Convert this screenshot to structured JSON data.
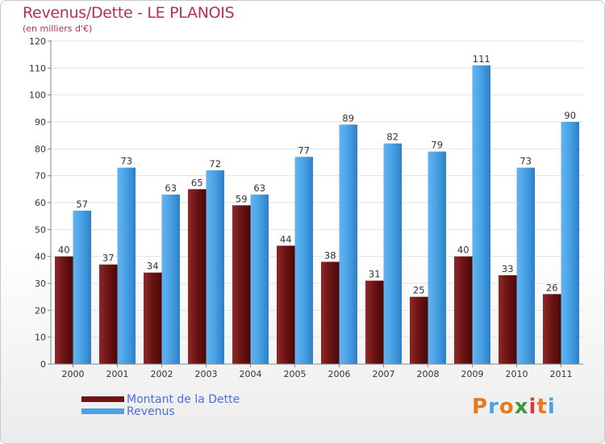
{
  "title": "Revenus/Dette - LE PLANOIS",
  "subtitle": "(en milliers d'€)",
  "legend": {
    "dette_label": "Montant de la Dette",
    "revenus_label": "Revenus"
  },
  "logo": {
    "text": "Proxiti"
  },
  "colors": {
    "dette": "#7a1a1a",
    "revenus": "#4aa3e6",
    "title": "#b03060"
  },
  "chart_data": {
    "type": "bar",
    "title": "Revenus/Dette - LE PLANOIS",
    "ylabel": "(en milliers d'€)",
    "xlabel": "",
    "ylim": [
      0,
      120
    ],
    "yticks": [
      0,
      10,
      20,
      30,
      40,
      50,
      60,
      70,
      80,
      90,
      100,
      110,
      120
    ],
    "grid": true,
    "legend_position": "bottom-left",
    "categories": [
      "2000",
      "2001",
      "2002",
      "2003",
      "2004",
      "2005",
      "2006",
      "2007",
      "2008",
      "2009",
      "2010",
      "2011"
    ],
    "series": [
      {
        "name": "Montant de la Dette",
        "values": [
          40,
          37,
          34,
          65,
          59,
          44,
          38,
          31,
          25,
          40,
          33,
          26
        ]
      },
      {
        "name": "Revenus",
        "values": [
          57,
          73,
          63,
          72,
          63,
          77,
          89,
          82,
          79,
          111,
          73,
          90
        ]
      }
    ]
  }
}
